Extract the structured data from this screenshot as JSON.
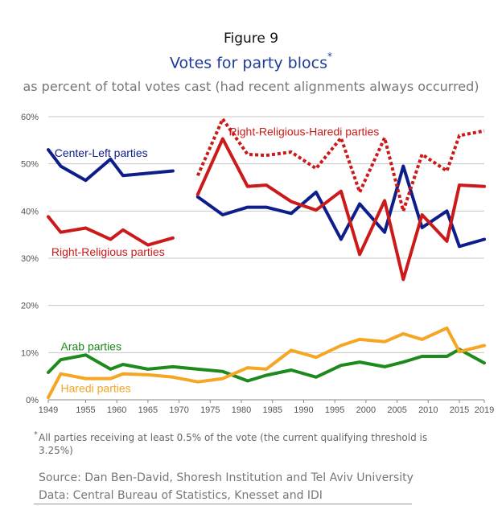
{
  "figure_label": "Figure 9",
  "title": "Votes for party blocs",
  "title_marker": "*",
  "subtitle": "as percent of total votes cast (had recent alignments always occurred)",
  "footnote_marker": "*",
  "footnote": "All parties receiving at least 0.5% of the vote (the current qualifying threshold is 3.25%)",
  "source": "Source: Dan Ben-David, Shoresh Institution and Tel Aviv University",
  "data_source": "Data: Central Bureau of Statistics, Knesset and IDI",
  "chart_data": {
    "type": "line",
    "xlim": [
      1949,
      2019
    ],
    "ylim": [
      0,
      60
    ],
    "x_ticks": [
      1949,
      1955,
      1960,
      1965,
      1970,
      1975,
      1980,
      1985,
      1990,
      1995,
      2000,
      2005,
      2010,
      2015,
      2019
    ],
    "x_tick_labels": [
      "1949",
      "1955",
      "1960",
      "1965",
      "1970",
      "1975",
      "1980",
      "1985",
      "1990",
      "1995",
      "2000",
      "2005",
      "2010",
      "2015",
      "2019"
    ],
    "y_ticks": [
      0,
      10,
      20,
      30,
      40,
      50,
      60
    ],
    "y_tick_labels": [
      "0%",
      "10%",
      "20%",
      "30%",
      "40%",
      "50%",
      "60%"
    ],
    "grid": true,
    "series": [
      {
        "name": "Center-Left parties",
        "color": "#0d1d8a",
        "style": "solid",
        "segments": [
          {
            "x": [
              1949,
              1951,
              1955,
              1959,
              1961,
              1965,
              1969
            ],
            "y": [
              53,
              49.5,
              46.5,
              51,
              47.5,
              48,
              48.5
            ]
          },
          {
            "x": [
              1973,
              1977,
              1981,
              1984,
              1988,
              1992,
              1996,
              1999,
              2003,
              2006,
              2009,
              2013,
              2015,
              2019
            ],
            "y": [
              43,
              39.2,
              40.8,
              40.8,
              39.5,
              44,
              34,
              41.5,
              35.5,
              49.5,
              36.5,
              40,
              32.5,
              34
            ]
          }
        ]
      },
      {
        "name": "Right-Religious parties",
        "color": "#cc1a1a",
        "style": "solid",
        "segments": [
          {
            "x": [
              1949,
              1951,
              1955,
              1959,
              1961,
              1965,
              1969
            ],
            "y": [
              38.8,
              35.5,
              36.4,
              34,
              36,
              32.8,
              34.3
            ]
          },
          {
            "x": [
              1973,
              1977,
              1981,
              1984,
              1988,
              1992,
              1996,
              1999,
              2003,
              2006,
              2009,
              2013,
              2015,
              2019
            ],
            "y": [
              43.5,
              55.3,
              45.2,
              45.5,
              42,
              40.2,
              44.2,
              30.8,
              42.2,
              25.5,
              39.2,
              33.6,
              45.5,
              45.2
            ]
          }
        ]
      },
      {
        "name": "Right-Religious-Haredi parties",
        "color": "#cc1a1a",
        "style": "dotted",
        "segments": [
          {
            "x": [
              1973,
              1977,
              1981,
              1984,
              1988,
              1992,
              1996,
              1999,
              2003,
              2006,
              2009,
              2013,
              2015,
              2019
            ],
            "y": [
              47.5,
              59.5,
              52,
              51.8,
              52.5,
              49,
              55.5,
              44,
              55.5,
              40,
              52,
              48.5,
              56,
              57
            ]
          }
        ]
      },
      {
        "name": "Arab parties",
        "color": "#1d8a1d",
        "style": "solid",
        "segments": [
          {
            "x": [
              1949,
              1951,
              1955,
              1959,
              1961,
              1965,
              1969,
              1973,
              1977,
              1981,
              1984,
              1988,
              1992,
              1996,
              1999,
              2003,
              2006,
              2009,
              2013,
              2015,
              2019
            ],
            "y": [
              5.8,
              8.5,
              9.5,
              6.5,
              7.5,
              6.5,
              7,
              6.5,
              6,
              4,
              5.2,
              6.3,
              4.8,
              7.3,
              8,
              7,
              8,
              9.2,
              9.2,
              10.7,
              7.8
            ]
          }
        ]
      },
      {
        "name": "Haredi parties",
        "color": "#f5a623",
        "style": "solid",
        "segments": [
          {
            "x": [
              1949,
              1951,
              1955,
              1959,
              1961,
              1965,
              1969,
              1973,
              1977,
              1981,
              1984,
              1988,
              1992,
              1996,
              1999,
              2003,
              2006,
              2009,
              2013,
              2015,
              2019
            ],
            "y": [
              0.5,
              5.5,
              4.5,
              4.5,
              5.5,
              5.3,
              4.8,
              3.8,
              4.5,
              6.8,
              6.5,
              10.5,
              9,
              11.5,
              12.8,
              12.3,
              14,
              12.8,
              15.2,
              10.2,
              11.5
            ]
          }
        ]
      }
    ],
    "labels": [
      {
        "text": "Center-Left parties",
        "series": 0,
        "x": 1950,
        "y": 51.5,
        "color": "#0d1d8a"
      },
      {
        "text": "Right-Religious-Haredi parties",
        "series": 2,
        "x": 1978,
        "y": 56,
        "color": "#cc1a1a"
      },
      {
        "text": "Right-Religious parties",
        "series": 1,
        "x": 1949.5,
        "y": 30.5,
        "color": "#cc1a1a"
      },
      {
        "text": "Arab parties",
        "series": 3,
        "x": 1951,
        "y": 10.5,
        "color": "#1d8a1d"
      },
      {
        "text": "Haredi parties",
        "series": 4,
        "x": 1951,
        "y": 1.6,
        "color": "#f5a623"
      }
    ]
  }
}
